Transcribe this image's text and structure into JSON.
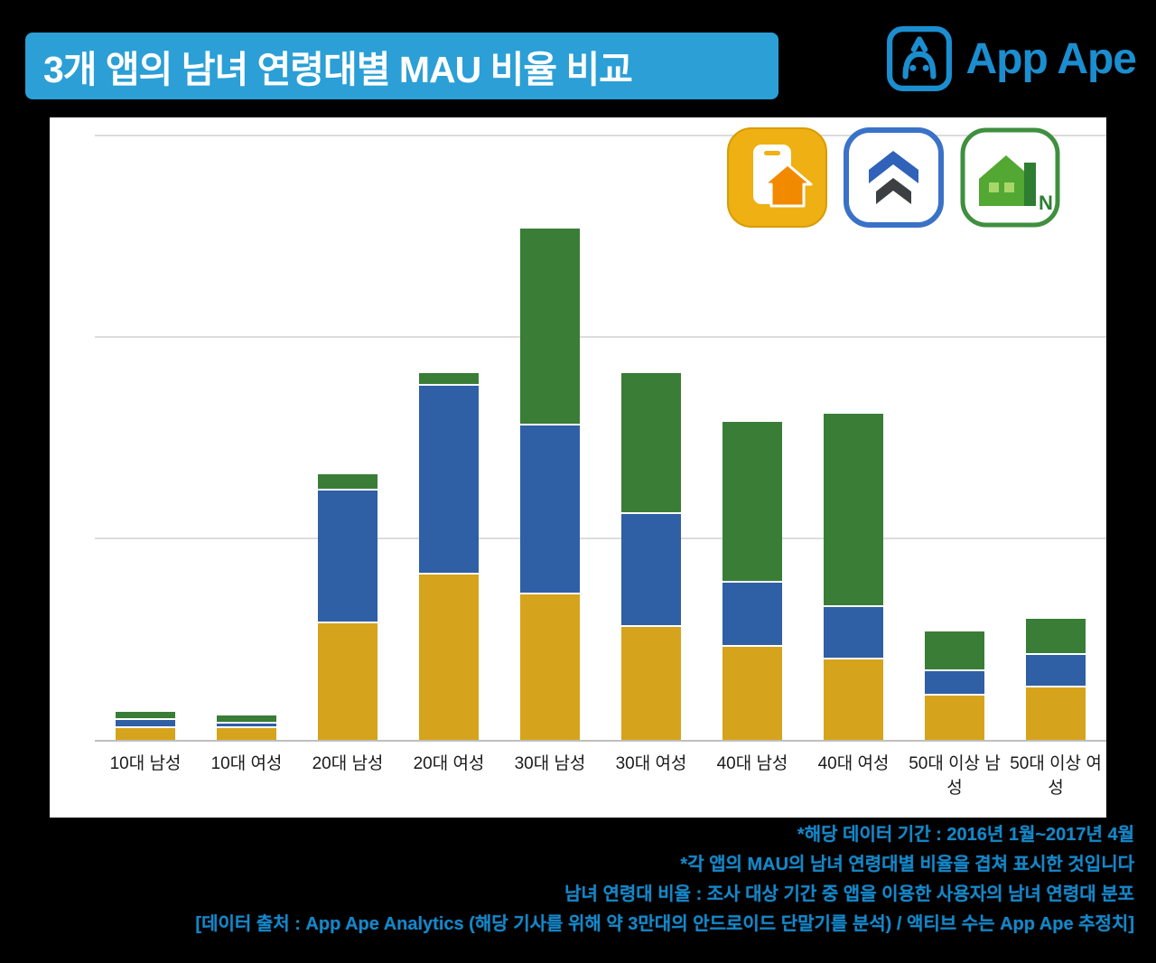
{
  "header": {
    "title": "3개 앱의 남녀 연령대별 MAU 비율 비교",
    "brand": "App Ape"
  },
  "legend": {
    "icons": [
      "zigbang-app-icon",
      "blue-house-app-icon",
      "naver-real-estate-app-icon"
    ],
    "naver_badge": "N"
  },
  "chart_data": {
    "type": "bar",
    "stacked": true,
    "title": "3개 앱의 남녀 연령대별 MAU 비율 비교",
    "categories": [
      "10대 남성",
      "10대 여성",
      "20대 남성",
      "20대 여성",
      "30대 남성",
      "30대 여성",
      "40대 남성",
      "40대 여성",
      "50대 이상 남성",
      "50대 이상 여성"
    ],
    "series": [
      {
        "name": "gold-app",
        "color": "#d6a31c",
        "values": [
          1.5,
          1.5,
          14.5,
          20.5,
          18.0,
          14.0,
          11.5,
          10.0,
          5.5,
          6.5
        ]
      },
      {
        "name": "blue-app",
        "color": "#2f5fa5",
        "values": [
          1.0,
          0.5,
          16.5,
          23.5,
          21.0,
          14.0,
          8.0,
          6.5,
          3.0,
          4.0
        ]
      },
      {
        "name": "green-app",
        "color": "#397d36",
        "values": [
          1.0,
          1.0,
          2.0,
          1.5,
          24.5,
          17.5,
          20.0,
          24.0,
          5.0,
          4.5
        ]
      }
    ],
    "xlabel": "",
    "ylabel": "",
    "unit": "% (estimated, no y tick labels shown)",
    "ylim": [
      0,
      77
    ],
    "gridlines": [
      25,
      50,
      75
    ],
    "grid": true,
    "legend_position": "top-right"
  },
  "footnotes": [
    "*해당 데이터 기간 : 2016년 1월~2017년 4월",
    "*각 앱의 MAU의 남녀 연령대별 비율을 겹쳐 표시한 것입니다",
    "남녀 연령대 비율 : 조사 대상 기간 중 앱을 이용한 사용자의 남녀 연령대 분포",
    "[데이터 출처 : App Ape Analytics (해당 기사를 위해 약 3만대의 안드로이드 단말기를 분석) / 액티브 수는 App Ape 추정치]"
  ]
}
